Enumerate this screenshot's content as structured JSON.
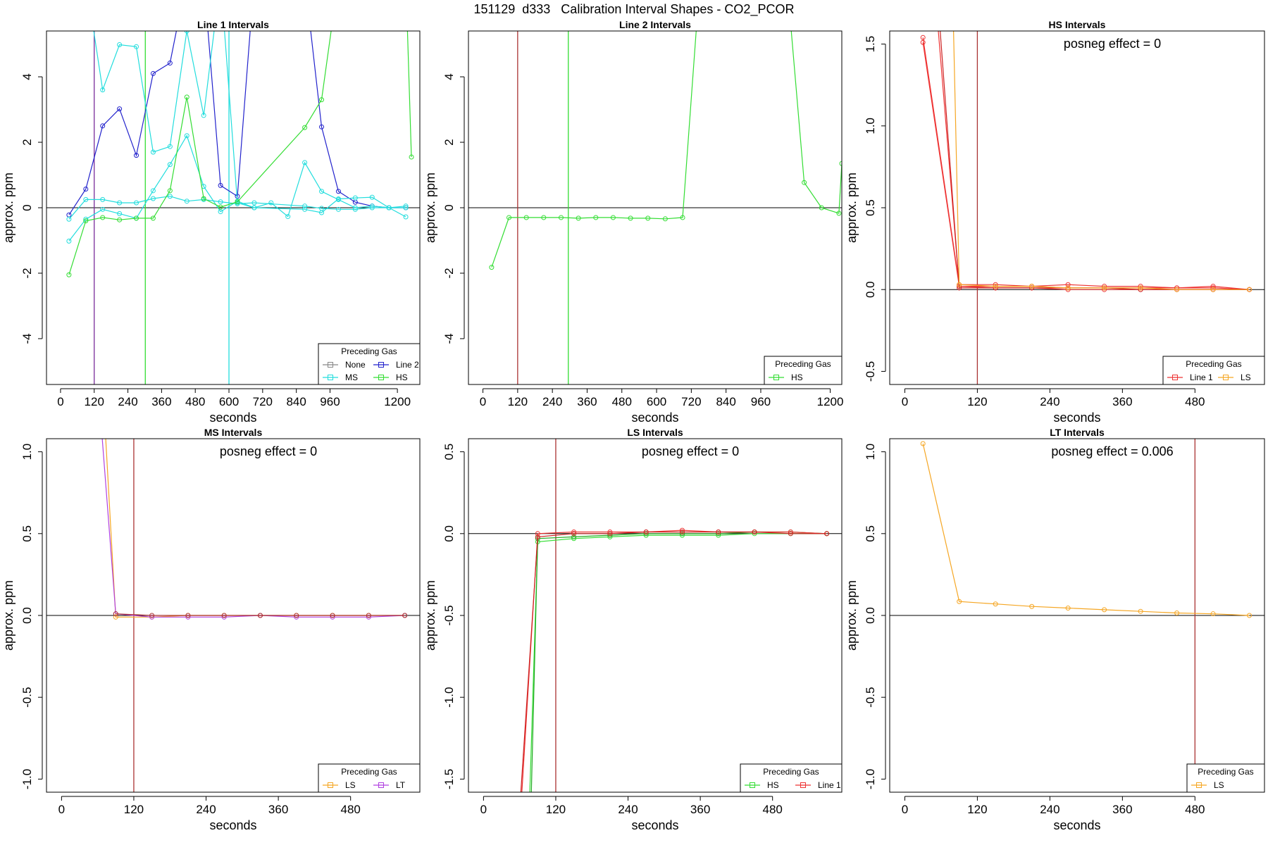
{
  "page_title": "151129  d333   Calibration Interval Shapes - CO2_PCOR",
  "chart_data": [
    {
      "type": "line",
      "title": "Line 1 Intervals",
      "xlabel": "seconds",
      "ylabel": "approx. ppm",
      "xlim": [
        -50,
        1280
      ],
      "ylim": [
        -5.4,
        5.4
      ],
      "xticks": [
        0,
        120,
        240,
        360,
        480,
        600,
        720,
        840,
        960,
        1200
      ],
      "yticks": [
        -4,
        -2,
        0,
        2,
        4
      ],
      "hlines": [
        0
      ],
      "vlines": [
        {
          "x": 120,
          "color": "#7a2d9a"
        },
        {
          "x": 302,
          "color": "#33dd33"
        },
        {
          "x": 600,
          "color": "#22dddd"
        }
      ],
      "legend": {
        "title": "Preceding Gas",
        "position": "bottom-right",
        "columns": 2,
        "items": [
          {
            "label": "None",
            "color": "#888888"
          },
          {
            "label": "Line 2",
            "color": "#2222cc"
          },
          {
            "label": "MS",
            "color": "#22dddd"
          },
          {
            "label": "HS",
            "color": "#33dd33"
          }
        ]
      },
      "series": [
        {
          "name": "Line 2",
          "color": "#2222cc",
          "x": [
            30,
            90,
            150,
            210,
            270,
            330,
            390,
            450,
            510,
            570,
            630,
            690,
            870,
            930,
            990,
            1050,
            1110,
            1170,
            1230
          ],
          "y": [
            -0.22,
            0.57,
            2.5,
            3.02,
            1.6,
            4.1,
            4.42,
            7.0,
            7.0,
            0.68,
            0.35,
            7.0,
            7.0,
            2.47,
            0.5,
            0.17,
            0.05,
            0.0,
            0.0
          ]
        },
        {
          "name": "MS",
          "color": "#22dddd",
          "x": [
            30,
            90,
            150,
            210,
            270,
            330,
            390,
            450,
            510,
            570,
            630,
            690,
            870,
            930,
            990,
            1050,
            1110,
            1170,
            1230
          ],
          "y": [
            -0.35,
            0.25,
            0.25,
            0.15,
            0.15,
            0.28,
            0.35,
            0.2,
            0.25,
            0.18,
            0.12,
            0.15,
            0.05,
            -0.02,
            -0.05,
            -0.05,
            0.0,
            0.0,
            0.05
          ]
        },
        {
          "name": "MS",
          "color": "#22dddd",
          "x": [
            30,
            90,
            150,
            210,
            270,
            330,
            390,
            450,
            510,
            570,
            630,
            690,
            870,
            930,
            990,
            1050,
            1110,
            1170,
            1230
          ],
          "y": [
            -1.02,
            -0.35,
            -0.05,
            -0.18,
            -0.32,
            0.52,
            1.32,
            2.2,
            0.65,
            -0.12,
            0.2,
            0.0,
            -0.05,
            -0.15,
            0.27,
            0.3,
            0.32,
            0.0,
            -0.28
          ]
        },
        {
          "name": "MS",
          "color": "#22dddd",
          "x": [
            90,
            150,
            210,
            270,
            330,
            390,
            450,
            510,
            570,
            630,
            690,
            750,
            810,
            870,
            930,
            990,
            1050,
            1110,
            1170,
            1230
          ],
          "y": [
            7.0,
            3.6,
            4.98,
            4.92,
            1.7,
            1.87,
            5.4,
            2.82,
            7.0,
            0.15,
            0.0,
            0.15,
            -0.27,
            1.38,
            0.5,
            0.25,
            0.0,
            0.05,
            0.0,
            0.0
          ]
        },
        {
          "name": "HS",
          "color": "#33dd33",
          "x": [
            30,
            90,
            150,
            210,
            270,
            330,
            390,
            450,
            510,
            570,
            630,
            870,
            930,
            990,
            1230,
            1250
          ],
          "y": [
            -2.05,
            -0.4,
            -0.3,
            -0.37,
            -0.32,
            -0.32,
            0.52,
            3.38,
            0.28,
            0.02,
            0.18,
            2.45,
            3.3,
            7.0,
            7.0,
            1.55
          ]
        }
      ]
    },
    {
      "type": "line",
      "title": "Line 2 Intervals",
      "xlabel": "seconds",
      "ylabel": "approx. ppm",
      "xlim": [
        -50,
        1240
      ],
      "ylim": [
        -5.4,
        5.4
      ],
      "xticks": [
        0,
        120,
        240,
        360,
        480,
        600,
        720,
        840,
        960,
        1200
      ],
      "yticks": [
        -4,
        -2,
        0,
        2,
        4
      ],
      "hlines": [
        0
      ],
      "vlines": [
        {
          "x": 120,
          "color": "#aa3333"
        },
        {
          "x": 295,
          "color": "#33dd33"
        }
      ],
      "legend": {
        "title": "Preceding Gas",
        "position": "bottom-right",
        "columns": 1,
        "items": [
          {
            "label": "HS",
            "color": "#33dd33"
          }
        ]
      },
      "series": [
        {
          "name": "HS",
          "color": "#33dd33",
          "x": [
            30,
            90,
            150,
            210,
            270,
            330,
            390,
            450,
            510,
            570,
            630,
            690,
            750,
            1050,
            1110,
            1170,
            1230,
            1240
          ],
          "y": [
            -1.82,
            -0.3,
            -0.3,
            -0.3,
            -0.3,
            -0.32,
            -0.3,
            -0.3,
            -0.32,
            -0.32,
            -0.34,
            -0.3,
            7.0,
            7.0,
            0.77,
            0.0,
            -0.17,
            1.35
          ]
        }
      ]
    },
    {
      "type": "line",
      "title": "HS Intervals",
      "xlabel": "seconds",
      "ylabel": "approx. ppm",
      "annotation": "posneg effect = 0",
      "xlim": [
        -25,
        595
      ],
      "ylim": [
        -0.58,
        1.58
      ],
      "xticks": [
        0,
        120,
        240,
        360,
        480
      ],
      "yticks": [
        -0.5,
        0.0,
        0.5,
        1.0,
        1.5
      ],
      "hlines": [
        0
      ],
      "vlines": [
        {
          "x": 120,
          "color": "#aa3333"
        }
      ],
      "legend": {
        "title": "Preceding Gas",
        "position": "bottom-right",
        "columns": 2,
        "items": [
          {
            "label": "Line 1",
            "color": "#ee3333"
          },
          {
            "label": "LS",
            "color": "#f5a623"
          }
        ]
      },
      "series": [
        {
          "name": "Line 1",
          "color": "#ee3333",
          "x": [
            30,
            90,
            150,
            210,
            270,
            330,
            390,
            450,
            510,
            570
          ],
          "y": [
            1.54,
            0.03,
            0.03,
            0.02,
            0.03,
            0.02,
            0.02,
            0.01,
            0.02,
            0.0
          ]
        },
        {
          "name": "Line 1",
          "color": "#ee3333",
          "x": [
            30,
            90,
            150,
            210,
            270,
            330,
            390,
            450,
            510,
            570
          ],
          "y": [
            1.51,
            0.02,
            0.01,
            0.01,
            0.0,
            0.0,
            0.0,
            0.0,
            0.0,
            0.0
          ]
        },
        {
          "name": "Line 1",
          "color": "#ee3333",
          "x": [
            35,
            90,
            150,
            210,
            270,
            330,
            390,
            450,
            510,
            570
          ],
          "y": [
            2.5,
            0.02,
            0.02,
            0.02,
            0.01,
            0.01,
            0.01,
            0.01,
            0.01,
            0.0
          ]
        },
        {
          "name": "Line 1",
          "color": "#cc2222",
          "x": [
            40,
            90,
            150,
            210,
            270,
            330,
            390,
            450,
            510,
            570
          ],
          "y": [
            2.5,
            0.01,
            0.01,
            0.01,
            0.01,
            0.01,
            0.0,
            0.0,
            0.0,
            0.0
          ]
        },
        {
          "name": "LS",
          "color": "#f5a623",
          "x": [
            75,
            90,
            150,
            210,
            270,
            330,
            390,
            450,
            510,
            570
          ],
          "y": [
            2.5,
            0.03,
            0.02,
            0.02,
            0.01,
            0.01,
            0.01,
            0.0,
            0.0,
            0.0
          ]
        }
      ]
    },
    {
      "type": "line",
      "title": "MS Intervals",
      "xlabel": "seconds",
      "ylabel": "approx. ppm",
      "annotation": "posneg effect = 0",
      "xlim": [
        -25,
        595
      ],
      "ylim": [
        -1.08,
        1.08
      ],
      "xticks": [
        0,
        120,
        240,
        360,
        480
      ],
      "yticks": [
        -1.0,
        -0.5,
        0.0,
        0.5,
        1.0
      ],
      "hlines": [
        0
      ],
      "vlines": [
        {
          "x": 120,
          "color": "#aa3333"
        }
      ],
      "legend": {
        "title": "Preceding Gas",
        "position": "bottom-right",
        "columns": 2,
        "items": [
          {
            "label": "LS",
            "color": "#f5a623"
          },
          {
            "label": "LT",
            "color": "#b040e0"
          }
        ]
      },
      "series": [
        {
          "name": "LS",
          "color": "#f5a623",
          "x": [
            70,
            90,
            150,
            210,
            270,
            330,
            390,
            450,
            510,
            570
          ],
          "y": [
            1.3,
            -0.01,
            -0.01,
            0.0,
            0.0,
            0.0,
            0.0,
            0.0,
            0.0,
            0.0
          ]
        },
        {
          "name": "LT",
          "color": "#b040e0",
          "x": [
            63,
            90,
            150,
            210,
            270,
            330,
            390,
            450,
            510,
            570
          ],
          "y": [
            1.3,
            0.01,
            -0.01,
            -0.01,
            -0.01,
            0.0,
            -0.01,
            -0.01,
            -0.01,
            0.0
          ]
        },
        {
          "name": "",
          "color": "#aa3333",
          "x": [
            90,
            150,
            210,
            270,
            330,
            390,
            450,
            510,
            570
          ],
          "y": [
            0.01,
            0.0,
            0.0,
            0.0,
            0.0,
            0.0,
            0.0,
            0.0,
            0.0
          ]
        }
      ]
    },
    {
      "type": "line",
      "title": "LS Intervals",
      "xlabel": "seconds",
      "ylabel": "approx. ppm",
      "annotation": "posneg effect = 0",
      "xlim": [
        -25,
        595
      ],
      "ylim": [
        -1.58,
        0.58
      ],
      "xticks": [
        0,
        120,
        240,
        360,
        480
      ],
      "yticks": [
        -1.5,
        -1.0,
        -0.5,
        0.0,
        0.5
      ],
      "hlines": [
        0
      ],
      "vlines": [
        {
          "x": 120,
          "color": "#aa3333"
        }
      ],
      "legend": {
        "title": "Preceding Gas",
        "position": "bottom-right",
        "columns": 2,
        "items": [
          {
            "label": "HS",
            "color": "#33dd33"
          },
          {
            "label": "Line 1",
            "color": "#ee3333"
          }
        ]
      },
      "series": [
        {
          "name": "HS",
          "color": "#33dd33",
          "x": [
            75,
            90,
            150,
            210,
            270,
            330,
            390,
            450,
            510,
            570
          ],
          "y": [
            -1.8,
            -0.05,
            -0.03,
            -0.02,
            -0.01,
            -0.01,
            -0.01,
            0.0,
            0.0,
            0.0
          ]
        },
        {
          "name": "HS",
          "color": "#22aa22",
          "x": [
            78,
            90,
            150,
            210,
            270,
            330,
            390,
            450,
            510,
            570
          ],
          "y": [
            -1.8,
            -0.03,
            -0.02,
            -0.01,
            0.0,
            0.0,
            0.0,
            0.01,
            0.01,
            0.0
          ]
        },
        {
          "name": "Line 1",
          "color": "#ee3333",
          "x": [
            60,
            90,
            150,
            210,
            270,
            330,
            390,
            450,
            510,
            570
          ],
          "y": [
            -1.8,
            0.0,
            0.01,
            0.01,
            0.01,
            0.02,
            0.01,
            0.01,
            0.01,
            0.0
          ]
        },
        {
          "name": "Line 1",
          "color": "#cc2222",
          "x": [
            58,
            90,
            150,
            210,
            270,
            330,
            390,
            450,
            510,
            570
          ],
          "y": [
            -1.8,
            -0.02,
            0.0,
            0.0,
            0.01,
            0.01,
            0.01,
            0.01,
            0.0,
            0.0
          ]
        }
      ]
    },
    {
      "type": "line",
      "title": "LT Intervals",
      "xlabel": "seconds",
      "ylabel": "approx. ppm",
      "annotation": "posneg effect = 0.006",
      "xlim": [
        -25,
        595
      ],
      "ylim": [
        -1.08,
        1.08
      ],
      "xticks": [
        0,
        120,
        240,
        360,
        480
      ],
      "yticks": [
        -1.0,
        -0.5,
        0.0,
        0.5,
        1.0
      ],
      "hlines": [
        0
      ],
      "vlines": [
        {
          "x": 480,
          "color": "#aa3333"
        }
      ],
      "legend": {
        "title": "Preceding Gas",
        "position": "bottom-right",
        "columns": 1,
        "items": [
          {
            "label": "LS",
            "color": "#f5a623"
          }
        ]
      },
      "series": [
        {
          "name": "LS",
          "color": "#f5a623",
          "x": [
            30,
            90,
            150,
            210,
            270,
            330,
            390,
            450,
            510,
            570
          ],
          "y": [
            1.05,
            0.085,
            0.07,
            0.055,
            0.045,
            0.035,
            0.025,
            0.015,
            0.01,
            0.0
          ]
        }
      ]
    }
  ]
}
